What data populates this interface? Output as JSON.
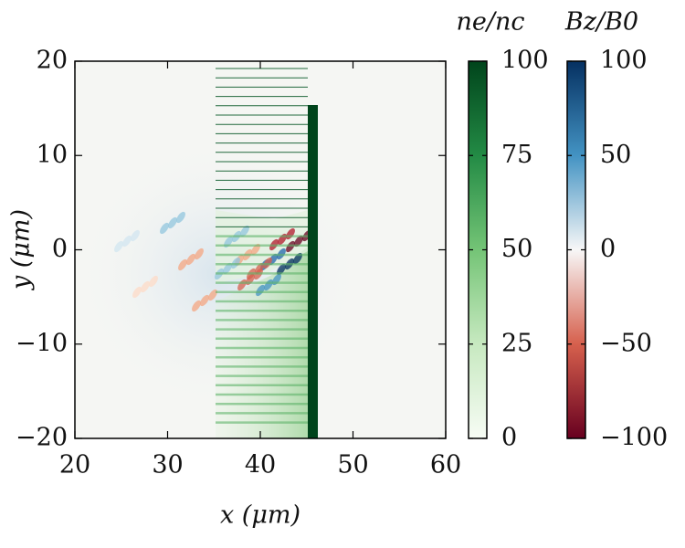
{
  "chart_data": {
    "type": "heatmap",
    "xlabel": "x (μm)",
    "ylabel": "y (μm)",
    "xlim": [
      20,
      60
    ],
    "ylim": [
      -20,
      20
    ],
    "xticks": [
      20,
      30,
      40,
      50,
      60
    ],
    "yticks": [
      {
        "value": -20,
        "label": "−20"
      },
      {
        "value": -10,
        "label": "−10"
      },
      0,
      10,
      20
    ],
    "colorbars": [
      {
        "label": "ne/nc",
        "lim": [
          0,
          100
        ],
        "ticks": [
          0,
          25,
          50,
          75,
          100
        ],
        "colormap": "Greens"
      },
      {
        "label": "Bz/B0",
        "lim": [
          -100,
          100
        ],
        "ticks": [
          {
            "value": -100,
            "label": "−100"
          },
          {
            "value": -50,
            "label": "−50"
          },
          0,
          50,
          100
        ],
        "colormap": "RdBu"
      }
    ]
  }
}
